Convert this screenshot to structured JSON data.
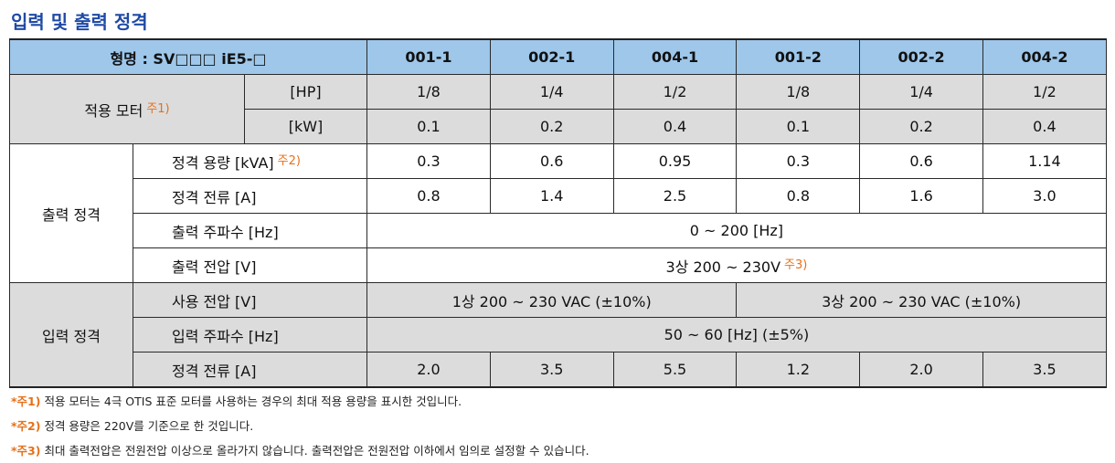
{
  "title": "입력 및 출력 정격",
  "header": {
    "model_label": "형명 : SV□□□ iE5-□",
    "models": [
      "001-1",
      "002-1",
      "004-1",
      "001-2",
      "002-2",
      "004-2"
    ]
  },
  "motor": {
    "label": "적용 모터",
    "note_mark": "주1)",
    "rows": [
      {
        "unit": "[HP]",
        "values": [
          "1/8",
          "1/4",
          "1/2",
          "1/8",
          "1/4",
          "1/2"
        ]
      },
      {
        "unit": "[kW]",
        "values": [
          "0.1",
          "0.2",
          "0.4",
          "0.1",
          "0.2",
          "0.4"
        ]
      }
    ]
  },
  "output": {
    "group_label": "출력 정격",
    "capacity": {
      "label": "정격 용량 [kVA]",
      "note_mark": "주2)",
      "values": [
        "0.3",
        "0.6",
        "0.95",
        "0.3",
        "0.6",
        "1.14"
      ]
    },
    "current": {
      "label": "정격 전류 [A]",
      "values": [
        "0.8",
        "1.4",
        "2.5",
        "0.8",
        "1.6",
        "3.0"
      ]
    },
    "frequency": {
      "label": "출력 주파수 [Hz]",
      "value": "0 ~ 200 [Hz]"
    },
    "voltage": {
      "label": "출력 전압 [V]",
      "value": "3상 200 ~ 230V",
      "note_mark": "주3)"
    }
  },
  "input": {
    "group_label": "입력 정격",
    "voltage": {
      "label": "사용 전압 [V]",
      "value_1ph": "1상 200 ~ 230 VAC (±10%)",
      "value_3ph": "3상 200 ~ 230 VAC (±10%)"
    },
    "frequency": {
      "label": "입력 주파수 [Hz]",
      "value": "50 ~ 60 [Hz] (±5%)"
    },
    "current": {
      "label": "정격 전류 [A]",
      "values": [
        "2.0",
        "3.5",
        "5.5",
        "1.2",
        "2.0",
        "3.5"
      ]
    }
  },
  "notes": [
    {
      "mark": "*주1)",
      "text": "적용 모터는 4극 OTIS 표준 모터를 사용하는 경우의 최대 적용 용량을 표시한 것입니다."
    },
    {
      "mark": "*주2)",
      "text": "정격 용량은 220V를 기준으로 한 것입니다."
    },
    {
      "mark": "*주3)",
      "text": "최대 출력전압은 전원전압 이상으로 올라가지 않습니다. 출력전압은 전원전압 이하에서 임의로 설정할 수 있습니다."
    }
  ]
}
